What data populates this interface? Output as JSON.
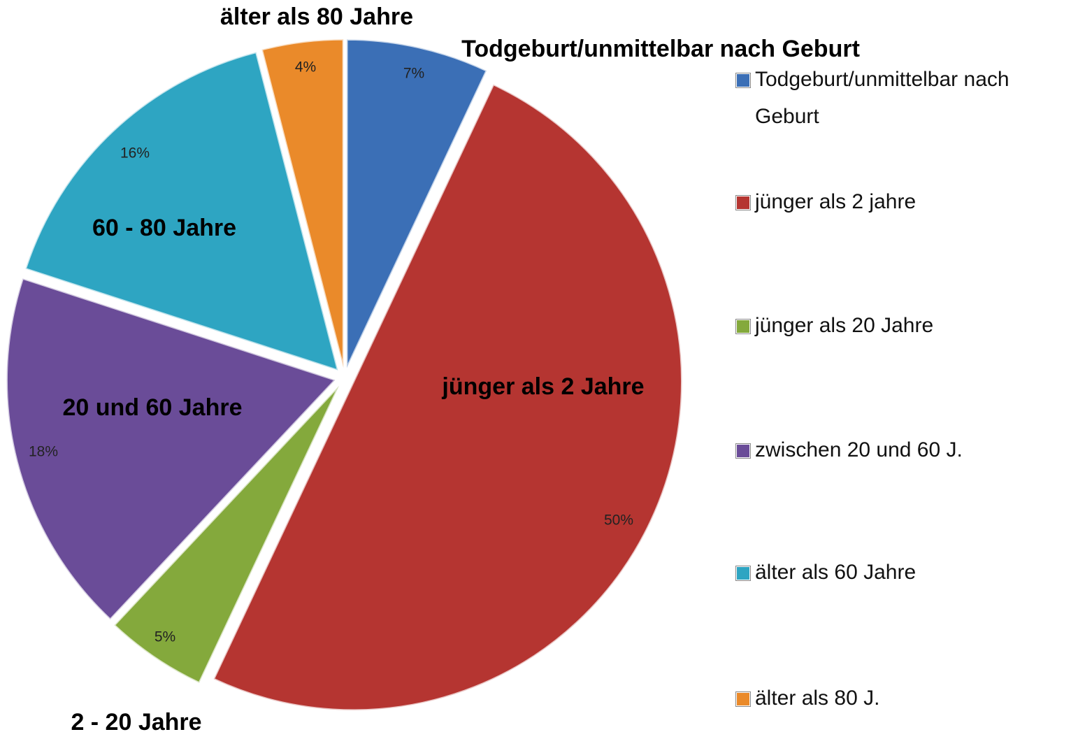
{
  "chart_data": {
    "type": "pie",
    "categories": [
      "Todgeburt/unmittelbar nach Geburt",
      "jünger als 2 jahre",
      "jünger als 20 Jahre",
      "zwischen 20 und 60 J.",
      "älter als 60 Jahre",
      "älter als 80 J."
    ],
    "values": [
      7,
      50,
      5,
      18,
      16,
      4
    ],
    "value_labels": [
      "7%",
      "50%",
      "5%",
      "18%",
      "16%",
      "4%"
    ],
    "annotations": [
      "Todgeburt/unmittelbar nach Geburt",
      "jünger als 2 Jahre",
      "2 - 20 Jahre",
      "20 und 60 Jahre",
      "60 - 80 Jahre",
      "älter als 80 Jahre"
    ],
    "colors": [
      "#3b6fb6",
      "#b53531",
      "#84a93c",
      "#6a4c98",
      "#2ea5c2",
      "#ea8a2a"
    ],
    "legend": "right"
  }
}
